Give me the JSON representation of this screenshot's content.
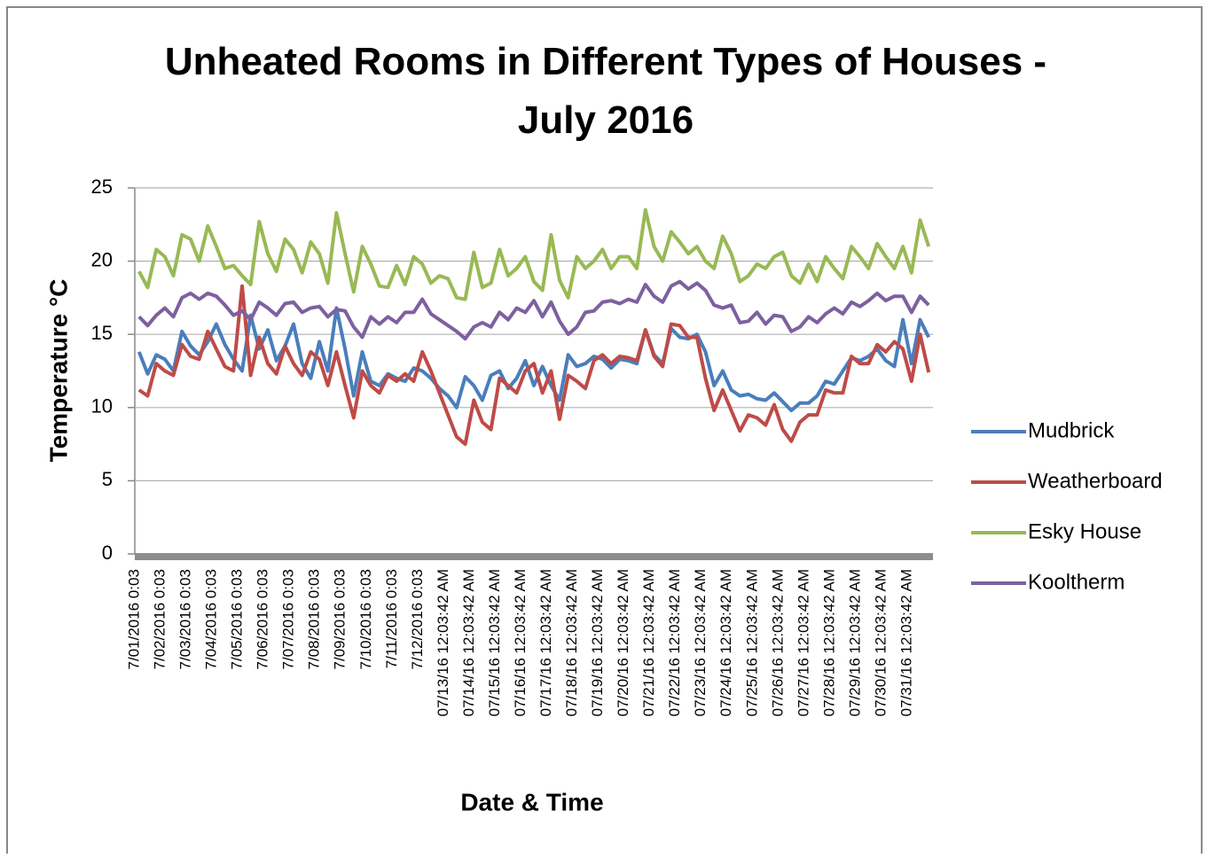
{
  "chart_data": {
    "type": "line",
    "title": "Unheated Rooms in Different Types of Houses - July 2016",
    "x_label": "Date & Time",
    "y_label": "Temperature °C",
    "categories": [
      "7/01/2016 0:03",
      null,
      null,
      "7/02/2016 0:03",
      null,
      null,
      "7/03/2016 0:03",
      null,
      null,
      "7/04/2016 0:03",
      null,
      null,
      "7/05/2016 0:03",
      null,
      null,
      "7/06/2016 0:03",
      null,
      null,
      "7/07/2016 0:03",
      null,
      null,
      "7/08/2016 0:03",
      null,
      null,
      "7/09/2016 0:03",
      null,
      null,
      "7/10/2016 0:03",
      null,
      null,
      "7/11/2016 0:03",
      null,
      null,
      "7/12/2016 0:03",
      null,
      null,
      "07/13/16 12:03:42 AM",
      null,
      null,
      "07/14/16 12:03:42 AM",
      null,
      null,
      "07/15/16 12:03:42 AM",
      null,
      null,
      "07/16/16 12:03:42 AM",
      null,
      null,
      "07/17/16 12:03:42 AM",
      null,
      null,
      "07/18/16 12:03:42 AM",
      null,
      null,
      "07/19/16 12:03:42 AM",
      null,
      null,
      "07/20/16 12:03:42 AM",
      null,
      null,
      "07/21/16 12:03:42 AM",
      null,
      null,
      "07/22/16 12:03:42 AM",
      null,
      null,
      "07/23/16 12:03:42 AM",
      null,
      null,
      "07/24/16 12:03:42 AM",
      null,
      null,
      "07/25/16 12:03:42 AM",
      null,
      null,
      "07/26/16 12:03:42 AM",
      null,
      null,
      "07/27/16 12:03:42 AM",
      null,
      null,
      "07/28/16 12:03:42 AM",
      null,
      null,
      "07/29/16 12:03:42 AM",
      null,
      null,
      "07/30/16 12:03:42 AM",
      null,
      null,
      "07/31/16 12:03:42 AM",
      null,
      null
    ],
    "series": [
      {
        "name": "Mudbrick",
        "color": "#4a7ebb",
        "values": [
          13.8,
          12.3,
          13.6,
          13.3,
          12.5,
          15.2,
          14.2,
          13.6,
          14.5,
          15.7,
          14.3,
          13.3,
          12.5,
          16.3,
          14.0,
          15.3,
          13.2,
          14.2,
          15.7,
          13.0,
          12.0,
          14.5,
          12.5,
          16.8,
          14.0,
          10.8,
          13.8,
          11.8,
          11.5,
          12.3,
          12.0,
          11.8,
          12.7,
          12.5,
          12.0,
          11.3,
          10.8,
          10.0,
          12.1,
          11.5,
          10.5,
          12.2,
          12.5,
          11.3,
          12.0,
          13.2,
          11.5,
          12.8,
          11.5,
          10.5,
          13.6,
          12.8,
          13.0,
          13.5,
          13.3,
          12.7,
          13.3,
          13.2,
          13.0,
          15.3,
          13.6,
          13.0,
          15.4,
          14.8,
          14.7,
          15.0,
          13.8,
          11.5,
          12.5,
          11.2,
          10.8,
          10.9,
          10.6,
          10.5,
          11.0,
          10.4,
          9.8,
          10.3,
          10.3,
          10.8,
          11.8,
          11.6,
          12.5,
          13.4,
          13.2,
          13.5,
          14.0,
          13.2,
          12.8,
          16.0,
          13.0,
          16.0,
          14.8
        ]
      },
      {
        "name": "Weatherboard",
        "color": "#be4b48",
        "values": [
          11.2,
          10.8,
          13.0,
          12.5,
          12.2,
          14.3,
          13.5,
          13.3,
          15.2,
          14.0,
          12.8,
          12.5,
          18.3,
          12.2,
          14.8,
          13.0,
          12.3,
          14.2,
          13.0,
          12.2,
          13.8,
          13.3,
          11.5,
          13.8,
          11.5,
          9.3,
          12.5,
          11.5,
          11.0,
          12.2,
          11.8,
          12.3,
          11.8,
          13.8,
          12.5,
          11.0,
          9.5,
          8.0,
          7.5,
          10.5,
          9.0,
          8.5,
          12.0,
          11.5,
          11.0,
          12.5,
          13.0,
          11.0,
          12.5,
          9.2,
          12.2,
          11.8,
          11.3,
          13.2,
          13.6,
          13.0,
          13.5,
          13.4,
          13.2,
          15.3,
          13.5,
          12.8,
          15.7,
          15.6,
          14.8,
          14.8,
          12.0,
          9.8,
          11.2,
          9.8,
          8.4,
          9.5,
          9.3,
          8.8,
          10.2,
          8.5,
          7.7,
          9.0,
          9.5,
          9.5,
          11.2,
          11.0,
          11.0,
          13.5,
          13.0,
          13.0,
          14.3,
          13.8,
          14.5,
          14.0,
          11.8,
          15.0,
          12.4
        ]
      },
      {
        "name": "Esky House",
        "color": "#98b954",
        "values": [
          19.3,
          18.2,
          20.8,
          20.3,
          19.0,
          21.8,
          21.5,
          20.0,
          22.4,
          21.0,
          19.5,
          19.7,
          19.0,
          18.4,
          22.7,
          20.5,
          19.3,
          21.5,
          20.8,
          19.2,
          21.3,
          20.5,
          18.5,
          23.3,
          20.5,
          17.9,
          21.0,
          19.8,
          18.3,
          18.2,
          19.7,
          18.4,
          20.3,
          19.8,
          18.5,
          19.0,
          18.8,
          17.5,
          17.4,
          20.6,
          18.2,
          18.5,
          20.8,
          19.0,
          19.5,
          20.3,
          18.6,
          18.0,
          21.8,
          18.7,
          17.5,
          20.3,
          19.5,
          20.0,
          20.8,
          19.5,
          20.3,
          20.3,
          19.5,
          23.5,
          21.0,
          20.0,
          22.0,
          21.3,
          20.5,
          21.0,
          20.0,
          19.5,
          21.7,
          20.5,
          18.6,
          19.0,
          19.8,
          19.5,
          20.3,
          20.6,
          19.0,
          18.5,
          19.8,
          18.6,
          20.3,
          19.5,
          18.8,
          21.0,
          20.3,
          19.5,
          21.2,
          20.3,
          19.5,
          21.0,
          19.2,
          22.8,
          21.0
        ]
      },
      {
        "name": "Kooltherm",
        "color": "#7d60a0",
        "values": [
          16.2,
          15.6,
          16.3,
          16.8,
          16.2,
          17.5,
          17.8,
          17.4,
          17.8,
          17.6,
          17.0,
          16.3,
          16.6,
          16.0,
          17.2,
          16.8,
          16.3,
          17.1,
          17.2,
          16.5,
          16.8,
          16.9,
          16.2,
          16.7,
          16.6,
          15.5,
          14.8,
          16.2,
          15.7,
          16.2,
          15.8,
          16.5,
          16.5,
          17.4,
          16.4,
          16.0,
          15.6,
          15.2,
          14.7,
          15.5,
          15.8,
          15.5,
          16.5,
          16.0,
          16.8,
          16.5,
          17.3,
          16.2,
          17.2,
          15.9,
          15.0,
          15.5,
          16.5,
          16.6,
          17.2,
          17.3,
          17.1,
          17.4,
          17.2,
          18.4,
          17.6,
          17.2,
          18.3,
          18.6,
          18.1,
          18.5,
          18.0,
          17.0,
          16.8,
          17.0,
          15.8,
          15.9,
          16.5,
          15.7,
          16.3,
          16.2,
          15.2,
          15.5,
          16.2,
          15.8,
          16.4,
          16.8,
          16.4,
          17.2,
          16.9,
          17.3,
          17.8,
          17.3,
          17.6,
          17.6,
          16.5,
          17.6,
          17.0
        ]
      }
    ],
    "ylim": [
      0,
      25
    ],
    "yticks": [
      0,
      5,
      10,
      15,
      20,
      25
    ],
    "grid": true,
    "legend": "right"
  }
}
